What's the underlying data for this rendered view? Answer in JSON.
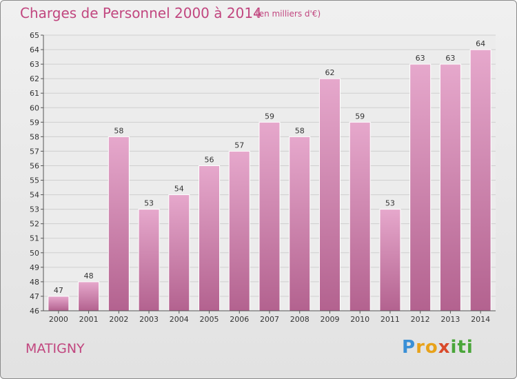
{
  "title": "Charges de Personnel 2000 à 2014",
  "unit_note": "(en milliers d'€)",
  "commune": "MATIGNY",
  "logo": {
    "text": "Proxiti",
    "letters": [
      "P",
      "r",
      "o",
      "x",
      "i",
      "t",
      "i"
    ],
    "letter_colors": [
      "#3a8fd6",
      "#e8a21a",
      "#e8a21a",
      "#d94a2b",
      "#4aa63a",
      "#4aa63a",
      "#4aa63a"
    ]
  },
  "colors": {
    "bar_light": "#e6a8cc",
    "bar_dark": "#b3628f",
    "accent": "#c1467f"
  },
  "chart_data": {
    "type": "bar",
    "categories": [
      "2000",
      "2001",
      "2002",
      "2003",
      "2004",
      "2005",
      "2006",
      "2007",
      "2008",
      "2009",
      "2010",
      "2011",
      "2012",
      "2013",
      "2014"
    ],
    "values": [
      47,
      48,
      58,
      53,
      54,
      56,
      57,
      59,
      58,
      62,
      59,
      53,
      63,
      63,
      64
    ],
    "title": "Charges de Personnel 2000 à 2014",
    "xlabel": "",
    "ylabel": "",
    "ylim": [
      46,
      65
    ],
    "yticks": [
      46,
      47,
      48,
      49,
      50,
      51,
      52,
      53,
      54,
      55,
      56,
      57,
      58,
      59,
      60,
      61,
      62,
      63,
      64,
      65
    ],
    "grid": true,
    "legend": "none"
  }
}
